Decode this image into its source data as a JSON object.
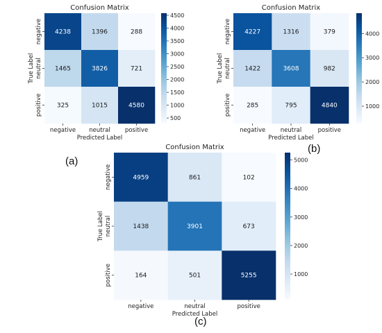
{
  "panel_labels": [
    "(a)",
    "(b)",
    "(c)"
  ],
  "chart_data": [
    {
      "type": "heatmap",
      "title": "Confusion Matrix",
      "xlabel": "Predicted Label",
      "ylabel": "True Label",
      "x_categories": [
        "negative",
        "neutral",
        "positive"
      ],
      "y_categories": [
        "negative",
        "neutral",
        "positive"
      ],
      "values": [
        [
          4238,
          1396,
          288
        ],
        [
          1465,
          3826,
          721
        ],
        [
          325,
          1015,
          4580
        ]
      ],
      "colormap": "Blues",
      "colorbar": {
        "range": [
          288,
          4580
        ],
        "ticks": [
          500,
          1000,
          1500,
          2000,
          2500,
          3000,
          3500,
          4000,
          4500
        ]
      }
    },
    {
      "type": "heatmap",
      "title": "Confusion Matrix",
      "xlabel": "Predicted Label",
      "ylabel": "True Label",
      "x_categories": [
        "negative",
        "neutral",
        "positive"
      ],
      "y_categories": [
        "negative",
        "neutral",
        "positive"
      ],
      "values": [
        [
          4227,
          1316,
          379
        ],
        [
          1422,
          3608,
          982
        ],
        [
          285,
          795,
          4840
        ]
      ],
      "colormap": "Blues",
      "colorbar": {
        "range": [
          285,
          4840
        ],
        "ticks": [
          1000,
          2000,
          3000,
          4000
        ]
      }
    },
    {
      "type": "heatmap",
      "title": "Confusion Matrix",
      "xlabel": "Predicted Label",
      "ylabel": "True Label",
      "x_categories": [
        "negative",
        "neutral",
        "positive"
      ],
      "y_categories": [
        "negative",
        "neutral",
        "positive"
      ],
      "values": [
        [
          4959,
          861,
          102
        ],
        [
          1438,
          3901,
          673
        ],
        [
          164,
          501,
          5255
        ]
      ],
      "colormap": "Blues",
      "colorbar": {
        "range": [
          102,
          5255
        ],
        "ticks": [
          1000,
          2000,
          3000,
          4000,
          5000
        ]
      }
    }
  ]
}
